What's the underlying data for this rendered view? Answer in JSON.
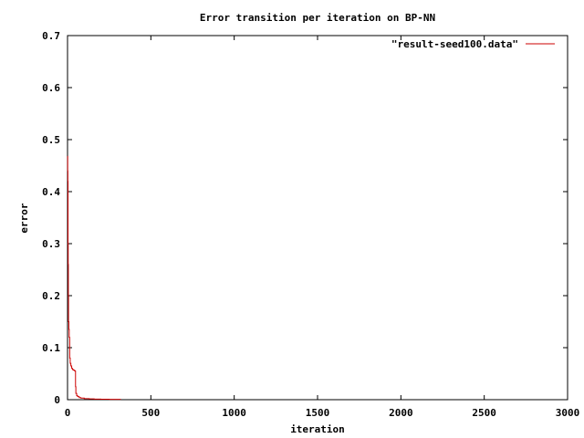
{
  "chart_data": {
    "type": "line",
    "title": "Error transition per iteration on BP-NN",
    "xlabel": "iteration",
    "ylabel": "error",
    "xlim": [
      0,
      3000
    ],
    "ylim": [
      0,
      0.7
    ],
    "x_ticks": [
      0,
      500,
      1000,
      1500,
      2000,
      2500,
      3000
    ],
    "x_tick_labels": [
      "0",
      "500",
      "1000",
      "1500",
      "2000",
      "2500",
      "3000"
    ],
    "y_ticks": [
      0,
      0.1,
      0.2,
      0.3,
      0.4,
      0.5,
      0.6,
      0.7
    ],
    "y_tick_labels": [
      "0",
      "0.1",
      "0.2",
      "0.3",
      "0.4",
      "0.5",
      "0.6",
      "0.7"
    ],
    "grid": false,
    "legend_position": "top-right",
    "series": [
      {
        "name": "\"result-seed100.data\"",
        "color": "#cc0000",
        "x": [
          0,
          1,
          1,
          2,
          2,
          3,
          3,
          4,
          4,
          5,
          5,
          6,
          6,
          8,
          8,
          10,
          10,
          13,
          13,
          16,
          16,
          20,
          20,
          25,
          25,
          30,
          30,
          35,
          35,
          40,
          40,
          45,
          45,
          48,
          48,
          50,
          50,
          55,
          55,
          60,
          60,
          70,
          70,
          80,
          80,
          100,
          100,
          130,
          130,
          160,
          160,
          200,
          200,
          250,
          250,
          320
        ],
        "y": [
          0.468,
          0.468,
          0.44,
          0.44,
          0.42,
          0.42,
          0.3,
          0.3,
          0.26,
          0.26,
          0.2,
          0.2,
          0.15,
          0.15,
          0.135,
          0.135,
          0.12,
          0.12,
          0.08,
          0.08,
          0.07,
          0.07,
          0.065,
          0.065,
          0.06,
          0.06,
          0.058,
          0.058,
          0.057,
          0.057,
          0.056,
          0.056,
          0.055,
          0.055,
          0.025,
          0.025,
          0.012,
          0.012,
          0.008,
          0.008,
          0.006,
          0.006,
          0.004,
          0.004,
          0.003,
          0.003,
          0.002,
          0.002,
          0.0015,
          0.0015,
          0.001,
          0.001,
          0.0008,
          0.0008,
          0.0006,
          0.0006
        ]
      }
    ]
  }
}
